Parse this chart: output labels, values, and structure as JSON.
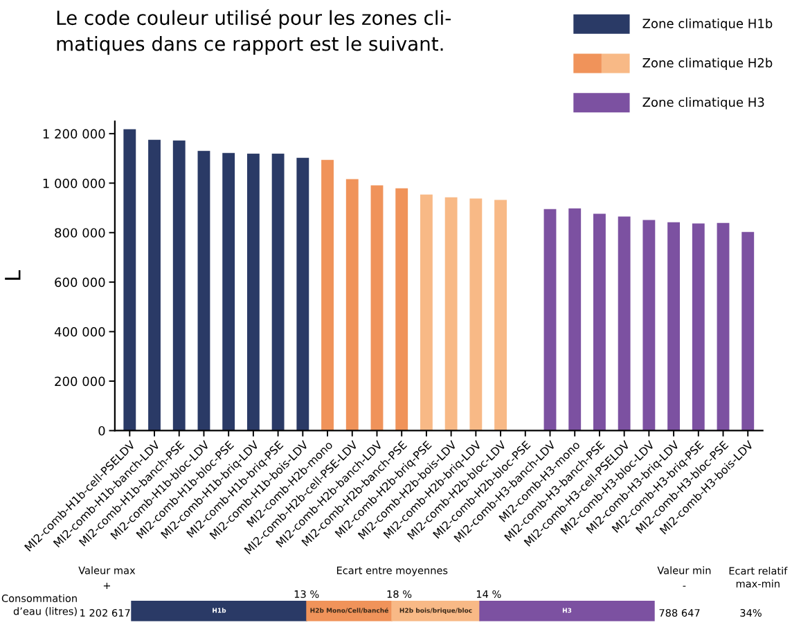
{
  "chart_data": [
    {
      "type": "bar",
      "title": "Le code couleur utilisé pour les zones cli-\nmatiques dans ce rapport est le suivant.",
      "ylabel": "L",
      "categories": [
        "MI2-comb-H1b-cell-PSELDV",
        "MI2-comb-H1b-banch-LDV",
        "MI2-comb-H1b-banch-PSE",
        "MI2-comb-H1b-bloc-LDV",
        "MI2-comb-H1b-bloc-PSE",
        "MI2-comb-H1b-briq-LDV",
        "MI2-comb-H1b-briq-PSE",
        "MI2-comb-H1b-bois-LDV",
        "MI2-comb-H2b-mono",
        "MI2-comb-H2b-cell-PSE-LDV",
        "MI2-comb-H2b-banch-LDV",
        "MI2-comb-H2b-banch-PSE",
        "MI2-comb-H2b-briq-PSE",
        "MI2-comb-H2b-bois-LDV",
        "MI2-comb-H2b-briq-LDV",
        "MI2-comb-H2b-bloc-LDV",
        "MI2-comb-H2b-bloc-PSE",
        "MI2-comb-H3-banch-LDV",
        "MI2-comb-H3-mono",
        "MI2-comb-H3-banch-PSE",
        "MI2-comb-H3-cell-PSELDV",
        "MI2-comb-H3-bloc-LDV",
        "MI2-comb-H3-briq-LDV",
        "MI2-comb-H3-briq-PSE",
        "MI2-comb-H3-bloc-PSE",
        "MI2-comb-H3-bois-LDV"
      ],
      "series": [
        {
          "name": "Zone climatique H1b",
          "color": "#2a3a66",
          "values": [
            1218000,
            1175000,
            1172000,
            1130000,
            1122000,
            1119000,
            1119000,
            1102000,
            null,
            null,
            null,
            null,
            null,
            null,
            null,
            null,
            null,
            null,
            null,
            null,
            null,
            null,
            null,
            null,
            null,
            null
          ]
        },
        {
          "name": "Zone climatique H2b",
          "colors": [
            null,
            null,
            null,
            null,
            null,
            null,
            null,
            null,
            "#f0935a",
            "#f0935a",
            "#f0935a",
            "#f0935a",
            "#f8b986",
            "#f8b986",
            "#f8b986",
            "#f8b986",
            null,
            null,
            null,
            null,
            null,
            null,
            null,
            null,
            null,
            null
          ],
          "values": [
            null,
            null,
            null,
            null,
            null,
            null,
            null,
            null,
            1094000,
            1016000,
            991000,
            979000,
            954000,
            943000,
            938000,
            932000,
            null,
            null,
            null,
            null,
            null,
            null,
            null,
            null,
            null,
            null
          ]
        },
        {
          "name": "Zone climatique H3",
          "color": "#7c51a1",
          "values": [
            null,
            null,
            null,
            null,
            null,
            null,
            null,
            null,
            null,
            null,
            null,
            null,
            null,
            null,
            null,
            null,
            null,
            895000,
            898000,
            876000,
            865000,
            851000,
            842000,
            837000,
            839000,
            803000
          ]
        }
      ],
      "ylim": [
        0,
        1250000
      ],
      "yticks": [
        0,
        {
          "value": 200000,
          "label": "200 000"
        },
        {
          "value": 400000,
          "label": "400 000"
        },
        {
          "value": 600000,
          "label": "600 000"
        },
        {
          "value": 800000,
          "label": "800 000"
        },
        {
          "value": 1000000,
          "label": "1 000 000"
        },
        {
          "value": 1200000,
          "label": "1 200 000"
        }
      ],
      "grid": false,
      "legend": "top right"
    },
    {
      "type": "other",
      "categories": [
        "H1b",
        "H2b Mono/Cell/banché",
        "H2b bois/brique/bloc",
        "H3"
      ],
      "colors": [
        "#2a3a66",
        "#f0935a",
        "#f8b986",
        "#7c51a1"
      ],
      "annotations": [
        "Valeur max",
        "+",
        "Ecart entre moyennes",
        "Valeur min",
        "-",
        "Ecart relatif\nmax-min",
        "Consommation\nd’eau (litres)",
        "1 202 617",
        "13 %",
        "18 %",
        "14 %",
        "788 647",
        "34%"
      ]
    }
  ]
}
